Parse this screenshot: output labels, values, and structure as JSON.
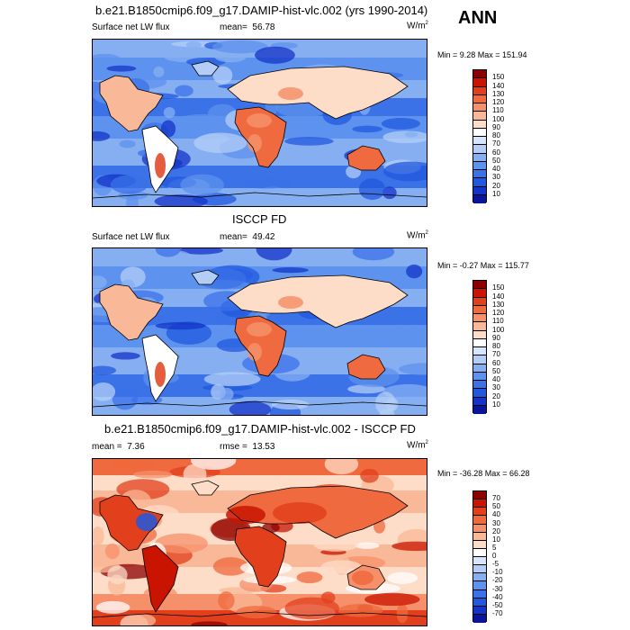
{
  "season": "ANN",
  "chart_data": [
    {
      "type": "heatmap",
      "title": "b.e21.B1850cmip6.f09_g17.DAMIP-hist-vlc.002 (yrs 1990-2014)",
      "variable": "Surface net LW flux",
      "mean_label": "mean=",
      "mean": "56.78",
      "units": "W/m",
      "units_sup": "2",
      "min_max": "Min =   9.28 Max = 151.94",
      "min": 9.28,
      "max": 151.94,
      "levels": [
        "150",
        "140",
        "130",
        "120",
        "110",
        "100",
        "90",
        "80",
        "70",
        "60",
        "50",
        "40",
        "30",
        "20",
        "10"
      ],
      "colors": [
        "#8b0000",
        "#c81400",
        "#e2401c",
        "#ef6a3e",
        "#f5906a",
        "#f9b897",
        "#fddcc8",
        "#ffffff",
        "#d6e5fb",
        "#b3cdf7",
        "#86aff2",
        "#5d92ee",
        "#3b72e8",
        "#2158de",
        "#1434c8",
        "#0a149c"
      ]
    },
    {
      "type": "heatmap",
      "title": "ISCCP FD",
      "variable": "Surface net LW flux",
      "mean_label": "mean=",
      "mean": "49.42",
      "units": "W/m",
      "units_sup": "2",
      "min_max": "Min =  -0.27 Max = 115.77",
      "min": -0.27,
      "max": 115.77,
      "levels": [
        "150",
        "140",
        "130",
        "120",
        "110",
        "100",
        "90",
        "80",
        "70",
        "60",
        "50",
        "40",
        "30",
        "20",
        "10"
      ],
      "colors": [
        "#8b0000",
        "#c81400",
        "#e2401c",
        "#ef6a3e",
        "#f5906a",
        "#f9b897",
        "#fddcc8",
        "#ffffff",
        "#d6e5fb",
        "#b3cdf7",
        "#86aff2",
        "#5d92ee",
        "#3b72e8",
        "#2158de",
        "#1434c8",
        "#0a149c"
      ]
    },
    {
      "type": "heatmap",
      "title": "b.e21.B1850cmip6.f09_g17.DAMIP-hist-vlc.002 - ISCCP FD",
      "variable": "",
      "mean_label": "mean =",
      "mean": "7.36",
      "rmse_label": "rmse =",
      "rmse": "13.53",
      "units": "W/m",
      "units_sup": "2",
      "min_max": "Min = -36.28 Max =  66.28",
      "min": -36.28,
      "max": 66.28,
      "levels": [
        "70",
        "50",
        "40",
        "30",
        "20",
        "10",
        "5",
        "0",
        "-5",
        "-10",
        "-20",
        "-30",
        "-40",
        "-50",
        "-70"
      ],
      "colors": [
        "#8b0000",
        "#c81400",
        "#e2401c",
        "#ef6a3e",
        "#f5906a",
        "#f9b897",
        "#fddcc8",
        "#ffffff",
        "#d6e5fb",
        "#b3cdf7",
        "#86aff2",
        "#5d92ee",
        "#3b72e8",
        "#2158de",
        "#1434c8",
        "#0a149c"
      ]
    }
  ]
}
